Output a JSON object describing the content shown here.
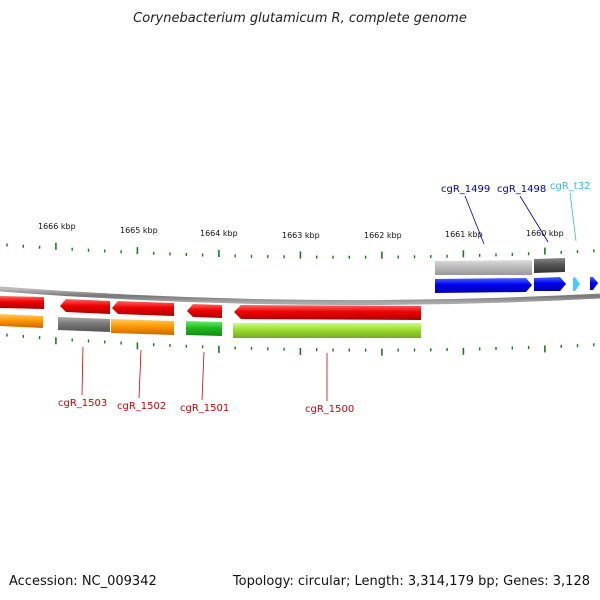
{
  "title": "Corynebacterium glutamicum R, complete genome",
  "footer": {
    "accession": "Accession: NC_009342",
    "summary": "Topology: circular; Length: 3,314,179 bp; Genes: 3,128"
  },
  "scale_labels": [
    "1666 kbp",
    "1665 kbp",
    "1664 kbp",
    "1663 kbp",
    "1662 kbp",
    "1661 kbp",
    "1660 kbp"
  ],
  "genes_labeled": [
    {
      "label": "cgR_1503",
      "color": "#cc0000"
    },
    {
      "label": "cgR_1502",
      "color": "#cc0000"
    },
    {
      "label": "cgR_1501",
      "color": "#cc0000"
    },
    {
      "label": "cgR_1500",
      "color": "#cc0000"
    },
    {
      "label": "cgR_1499",
      "color": "#0000aa"
    },
    {
      "label": "cgR_1498",
      "color": "#0000aa"
    },
    {
      "label": "cgR_t32",
      "color": "#33bbdd"
    }
  ],
  "colors": {
    "backbone": "#8c8c8c",
    "tick": "#1a7a1a",
    "cds_reverse": "#ee0000",
    "cds_forward": "#0000ee",
    "cog_orange": "#ff9900",
    "cog_gray": "#777777",
    "cog_green": "#22bb22",
    "cog_lime": "#99dd33",
    "cog_light_gray": "#bbbbbb",
    "cog_dark_gray": "#555555",
    "trna": "#44ccff"
  }
}
